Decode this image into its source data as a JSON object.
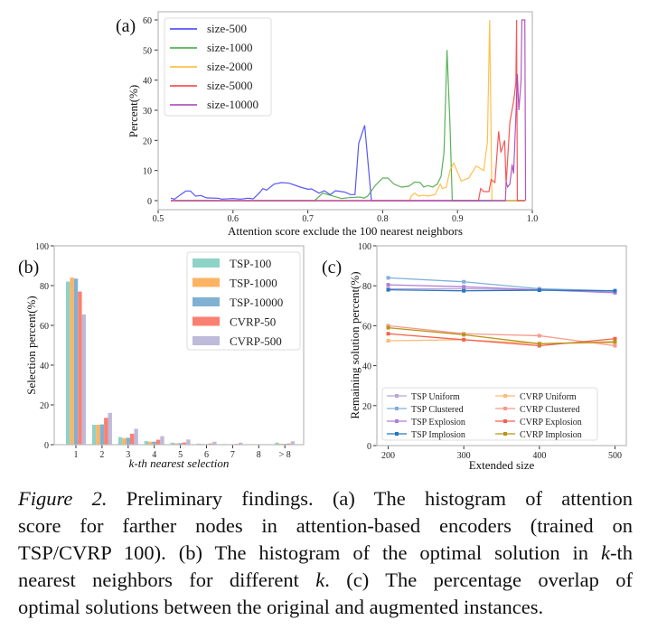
{
  "chart_data": [
    {
      "panel_label": "(a)",
      "type": "line",
      "xlabel": "Attention score exclude the 100 nearest neighbors",
      "ylabel": "Percent(%)",
      "xlim": [
        0.5,
        1.0
      ],
      "ylim": [
        -3,
        62.7
      ],
      "xticks": [
        "0.5",
        "0.6",
        "0.7",
        "0.8",
        "0.9",
        "1.0"
      ],
      "yticks": [
        "0",
        "10",
        "20",
        "30",
        "40",
        "50",
        "60"
      ],
      "grid": false,
      "legend_position": "top-left",
      "series": [
        {
          "name": "size-500",
          "color": "#3a3af5",
          "x": [
            0.517,
            0.522,
            0.53,
            0.537,
            0.543,
            0.55,
            0.557,
            0.565,
            0.58,
            0.585,
            0.6,
            0.61,
            0.62,
            0.627,
            0.635,
            0.64,
            0.645,
            0.655,
            0.665,
            0.675,
            0.69,
            0.7,
            0.705,
            0.715,
            0.722,
            0.73,
            0.737,
            0.75,
            0.757,
            0.763,
            0.768,
            0.776,
            0.785,
            0.99
          ],
          "y": [
            0.8,
            0.5,
            2,
            3.2,
            3.2,
            1.5,
            1.7,
            0.9,
            0.8,
            0.5,
            0.7,
            0.5,
            0.8,
            0.6,
            2.5,
            4,
            3.5,
            5.5,
            6,
            5.8,
            4.5,
            3.8,
            3.9,
            2.5,
            3.3,
            2,
            3.3,
            2.8,
            2,
            2,
            19,
            25,
            0,
            0
          ]
        },
        {
          "name": "size-1000",
          "color": "#3ca53c",
          "x": [
            0.517,
            0.709,
            0.72,
            0.73,
            0.745,
            0.755,
            0.77,
            0.775,
            0.78,
            0.79,
            0.8,
            0.807,
            0.815,
            0.825,
            0.835,
            0.843,
            0.85,
            0.855,
            0.86,
            0.867,
            0.873,
            0.878,
            0.882,
            0.886,
            0.89,
            0.893,
            0.99
          ],
          "y": [
            0,
            0,
            2.5,
            1.8,
            0.7,
            1,
            1.2,
            0.8,
            1.5,
            5,
            7.5,
            7.5,
            5.5,
            4.5,
            4.8,
            6.2,
            6,
            4.5,
            5,
            4.5,
            5.5,
            8,
            16,
            50,
            25,
            0,
            0
          ]
        },
        {
          "name": "size-2000",
          "color": "#ffb52e",
          "x": [
            0.517,
            0.836,
            0.838,
            0.843,
            0.848,
            0.855,
            0.86,
            0.87,
            0.877,
            0.88,
            0.885,
            0.89,
            0.895,
            0.905,
            0.915,
            0.925,
            0.935,
            0.94,
            0.943,
            0.946,
            0.99
          ],
          "y": [
            0,
            0,
            1.5,
            2.5,
            1.5,
            1.8,
            1.5,
            2,
            5.5,
            4,
            4.5,
            10,
            12.5,
            6.5,
            7.5,
            11.5,
            10,
            19.5,
            60,
            0,
            0
          ]
        },
        {
          "name": "size-5000",
          "color": "#f53a3a",
          "x": [
            0.517,
            0.928,
            0.931,
            0.935,
            0.942,
            0.945,
            0.95,
            0.955,
            0.958,
            0.963,
            0.965,
            0.97,
            0.975,
            0.978,
            0.979,
            0.98,
            0.99
          ],
          "y": [
            0,
            0,
            4,
            3,
            3,
            7,
            6,
            23,
            16,
            20,
            5.5,
            26,
            33,
            39,
            60,
            0,
            0
          ]
        },
        {
          "name": "size-10000",
          "color": "#a53ab5",
          "x": [
            0.517,
            0.964,
            0.965,
            0.967,
            0.97,
            0.973,
            0.975,
            0.978,
            0.98,
            0.982,
            0.985,
            0.986,
            0.99,
            0.991
          ],
          "y": [
            0,
            0,
            6,
            4.5,
            5.5,
            12,
            9,
            28,
            42,
            30,
            40,
            60,
            60,
            0
          ]
        }
      ]
    },
    {
      "panel_label": "(b)",
      "type": "bar",
      "xlabel": "k-th nearest selection",
      "ylabel": "Selection percent(%)",
      "ylim": [
        0,
        100
      ],
      "yticks": [
        "0",
        "20",
        "40",
        "60",
        "80",
        "100"
      ],
      "categories": [
        "1",
        "2",
        "3",
        "4",
        "5",
        "6",
        "7",
        "8",
        "> 8"
      ],
      "legend_position": "top-right",
      "series": [
        {
          "name": "TSP-100",
          "color": "#8dd3c7",
          "values": [
            82,
            10,
            3.8,
            1.8,
            1,
            0.5,
            0.3,
            0,
            1
          ]
        },
        {
          "name": "TSP-1000",
          "color": "#fdb462",
          "values": [
            84,
            10,
            3.3,
            1.5,
            0.7,
            0.4,
            0.2,
            0,
            0.5
          ]
        },
        {
          "name": "TSP-10000",
          "color": "#80b1d3",
          "values": [
            83.5,
            10.2,
            3.5,
            1.5,
            0.8,
            0.3,
            0.2,
            0,
            0.4
          ]
        },
        {
          "name": "CVRP-50",
          "color": "#fb8072",
          "values": [
            77,
            13.5,
            5.5,
            2.5,
            1.1,
            0.6,
            0.4,
            0,
            0.6
          ]
        },
        {
          "name": "CVRP-500",
          "color": "#bebada",
          "values": [
            65.5,
            16,
            8,
            4.3,
            2.6,
            1.5,
            1,
            0,
            1.7
          ]
        }
      ]
    },
    {
      "panel_label": "(c)",
      "type": "line",
      "xlabel": "Extended size",
      "ylabel": "Remaining solution percent(%)",
      "xlim": [
        185,
        515
      ],
      "ylim": [
        0,
        100
      ],
      "x": [
        200,
        300,
        400,
        500
      ],
      "xticks": [
        "200",
        "300",
        "400",
        "500"
      ],
      "yticks": [
        "0",
        "20",
        "40",
        "60",
        "80",
        "100"
      ],
      "legend_position": "lower-center",
      "series": [
        {
          "name": "TSP Uniform",
          "color": "#b9a5dc",
          "values": [
            78.5,
            78.5,
            78,
            77
          ]
        },
        {
          "name": "TSP Clustered",
          "color": "#7fb0dc",
          "values": [
            84,
            82,
            78.5,
            77.5
          ]
        },
        {
          "name": "TSP Explosion",
          "color": "#b07fd8",
          "values": [
            80.5,
            79.5,
            78,
            76.5
          ]
        },
        {
          "name": "TSP Implosion",
          "color": "#2a76bd",
          "values": [
            78,
            77.5,
            77.8,
            77.5
          ]
        },
        {
          "name": "CVRP Uniform",
          "color": "#ffbb78",
          "values": [
            52.5,
            53,
            51,
            51.5
          ]
        },
        {
          "name": "CVRP Clustered",
          "color": "#f79a8e",
          "values": [
            60,
            56,
            55,
            50
          ]
        },
        {
          "name": "CVRP Explosion",
          "color": "#f4604f",
          "values": [
            56,
            53,
            50,
            53.5
          ]
        },
        {
          "name": "CVRP Implosion",
          "color": "#b8961a",
          "values": [
            59,
            55.5,
            51,
            52
          ]
        }
      ]
    }
  ],
  "caption": {
    "lines": [
      [
        {
          "t": "Figure 2.",
          "i": true
        },
        {
          "t": " Preliminary findings.  (a) The histogram of attention",
          "i": false
        }
      ],
      [
        {
          "t": "score for farther nodes in attention-based encoders (trained on",
          "i": false
        }
      ],
      [
        {
          "t": "TSP/CVRP 100). (b) The histogram of the optimal solution in ",
          "i": false
        },
        {
          "t": "k",
          "i": true
        },
        {
          "t": "-th",
          "i": false
        }
      ],
      [
        {
          "t": "nearest neighbors for different ",
          "i": false
        },
        {
          "t": "k",
          "i": true
        },
        {
          "t": ". (c) The percentage overlap of",
          "i": false
        }
      ],
      [
        {
          "t": "optimal solutions between the original and augmented instances.",
          "i": false
        }
      ]
    ]
  }
}
